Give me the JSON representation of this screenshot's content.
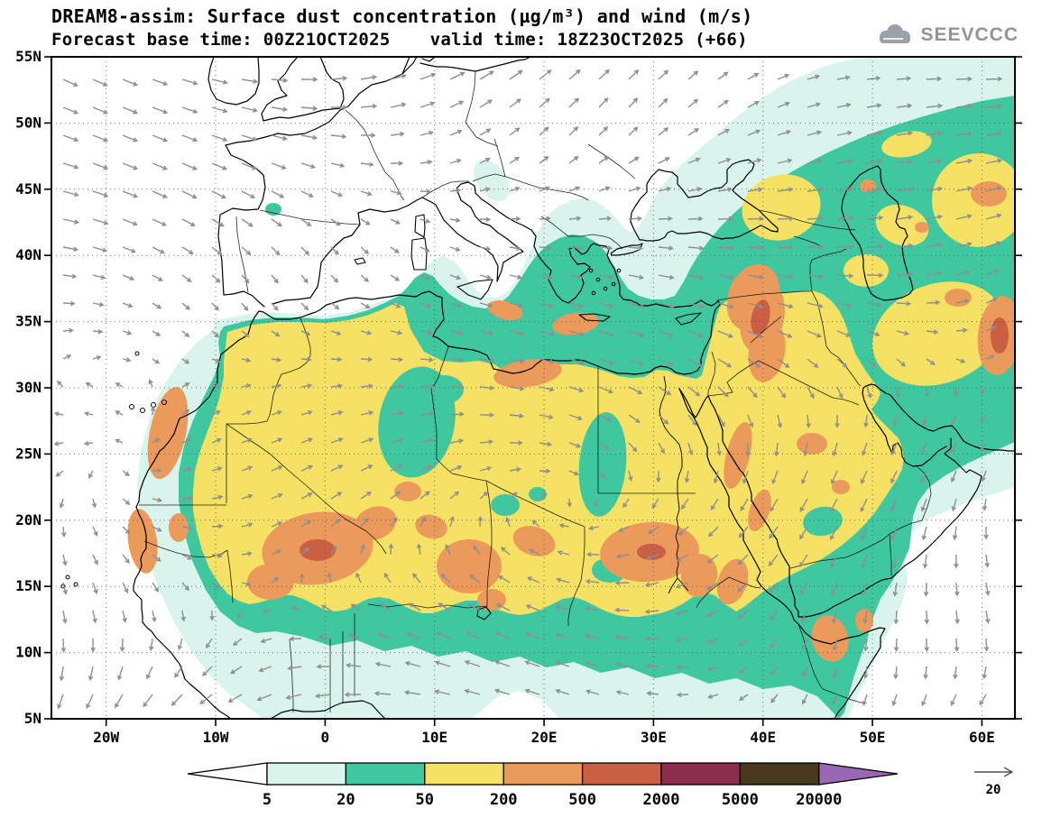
{
  "header": {
    "title": "DREAM8-assim: Surface dust concentration (µg/m³) and wind (m/s)",
    "forecast": "Forecast base time: 00Z21OCT2025",
    "valid": "valid time: 18Z23OCT2025 (+66)"
  },
  "logo": {
    "text": "SEEVCCC"
  },
  "axes": {
    "lat": [
      "55N",
      "50N",
      "45N",
      "40N",
      "35N",
      "30N",
      "25N",
      "20N",
      "15N",
      "10N",
      "5N"
    ],
    "lon": [
      "20W",
      "10W",
      "0",
      "10E",
      "20E",
      "30E",
      "40E",
      "50E",
      "60E"
    ]
  },
  "colorbar": {
    "labels": [
      "5",
      "20",
      "50",
      "200",
      "500",
      "2000",
      "5000",
      "20000"
    ],
    "colors": [
      "#ffffff",
      "#d9f4ec",
      "#3fc7a0",
      "#f5e163",
      "#ec9a5c",
      "#c95f43",
      "#8e2c4e",
      "#46391d",
      "#9a68b2"
    ]
  },
  "wind_ref": {
    "label": "20"
  },
  "colors": {
    "lvl0": "#ffffff",
    "lvl1": "#d9f4ec",
    "lvl2": "#3fc7a0",
    "lvl3": "#f5e163",
    "lvl4": "#ec9a5c",
    "lvl5": "#c95f43",
    "lvl6": "#8e2c4e",
    "lvl7": "#46391d",
    "lvl8": "#9a68b2",
    "coast": "#000000",
    "grid": "#555555",
    "arrow": "#8f8f8f",
    "logo": "#9aa1a8"
  },
  "chart_data": {
    "type": "heatmap",
    "subtype": "filled_contour_map_with_wind_vectors",
    "title": "Surface dust concentration (µg/m³) and wind (m/s)",
    "model": "DREAM8-assim",
    "forecast_base_time": "00Z21OCT2025",
    "valid_time": "18Z23OCT2025",
    "forecast_hour": "+66",
    "variable": "surface dust concentration",
    "units": "µg/m³",
    "contour_levels": [
      5,
      20,
      50,
      200,
      500,
      2000,
      5000,
      20000
    ],
    "level_colors": [
      "#ffffff",
      "#d9f4ec",
      "#3fc7a0",
      "#f5e163",
      "#ec9a5c",
      "#c95f43",
      "#8e2c4e",
      "#46391d",
      "#9a68b2"
    ],
    "map_extent": {
      "lon_min": -25,
      "lon_max": 63.5,
      "lat_min": 5,
      "lat_max": 55
    },
    "lat_ticks": [
      "55N",
      "50N",
      "45N",
      "40N",
      "35N",
      "30N",
      "25N",
      "20N",
      "15N",
      "10N",
      "5N"
    ],
    "lon_ticks": [
      "20W",
      "10W",
      "0",
      "10E",
      "20E",
      "30E",
      "40E",
      "50E",
      "60E"
    ],
    "wind": {
      "type": "vector_arrows",
      "reference_speed_m_s": 20,
      "color": "gray"
    },
    "grid": "dotted",
    "legend_position": "bottom",
    "regions_qualitative": [
      {
        "region": "Sahara-Sahel dust belt (Mauritania, Mali, Niger, Chad, Sudan)",
        "value_range_ug_m3": "200-2000"
      },
      {
        "region": "Most of North Africa and the Arabian Peninsula",
        "value_range_ug_m3": "50-200"
      },
      {
        "region": "Syria-Iraq-northern Saudi Arabia plume",
        "value_range_ug_m3": "200-2000"
      },
      {
        "region": "Western Sahara and Senegal coastal plumes",
        "value_range_ug_m3": "200-2000"
      },
      {
        "region": "SE Iran / Makran area at map right edge",
        "value_range_ug_m3": "200-2000"
      },
      {
        "region": "Mediterranean coastal fringe, Sahel margin, Horn of Africa, Caucasus-Caspian belt",
        "value_range_ug_m3": "20-50"
      },
      {
        "region": "Atlantic off West Africa, Aegean-Anatolia, Central Asia fringes, Gulf of Guinea",
        "value_range_ug_m3": "5-20"
      },
      {
        "region": "Europe north of ~40N and open ocean",
        "value_range_ug_m3": "<5"
      }
    ]
  }
}
